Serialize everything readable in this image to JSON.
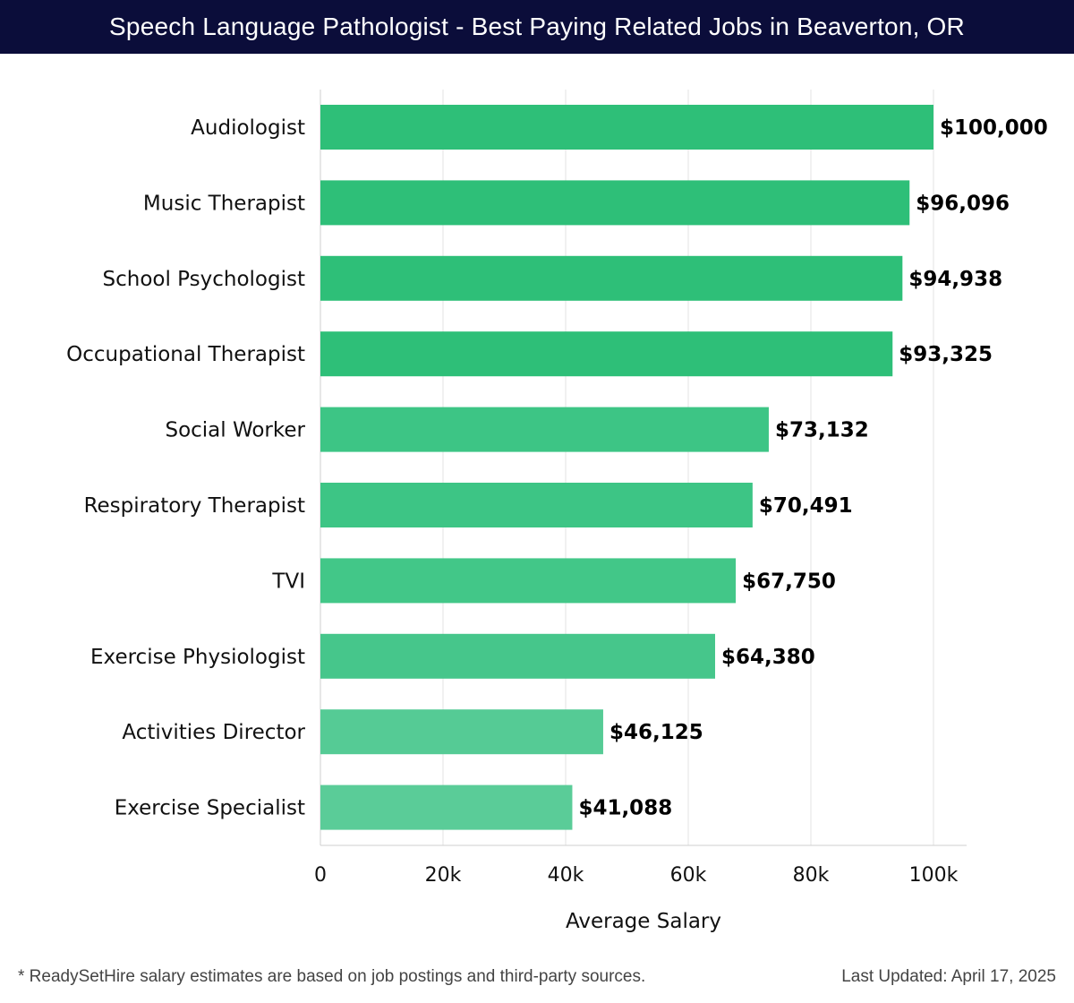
{
  "header": {
    "title": "Speech Language Pathologist - Best Paying Related Jobs in Beaverton, OR"
  },
  "chart_data": {
    "type": "bar",
    "orientation": "horizontal",
    "title": "Speech Language Pathologist - Best Paying Related Jobs in Beaverton, OR",
    "xlabel": "Average Salary",
    "ylabel": "",
    "xlim": [
      0,
      105000
    ],
    "x_ticks": [
      0,
      20000,
      40000,
      60000,
      80000,
      100000
    ],
    "x_tick_labels": [
      "0",
      "20k",
      "40k",
      "60k",
      "80k",
      "100k"
    ],
    "grid": "vertical",
    "categories": [
      "Audiologist",
      "Music Therapist",
      "School Psychologist",
      "Occupational Therapist",
      "Social Worker",
      "Respiratory Therapist",
      "TVI",
      "Exercise Physiologist",
      "Activities Director",
      "Exercise Specialist"
    ],
    "values": [
      100000,
      96096,
      94938,
      93325,
      73132,
      70491,
      67750,
      64380,
      46125,
      41088
    ],
    "value_labels": [
      "$100,000",
      "$96,096",
      "$94,938",
      "$93,325",
      "$73,132",
      "$70,491",
      "$67,750",
      "$64,380",
      "$46,125",
      "$41,088"
    ],
    "bar_colors": [
      "#2ebf78",
      "#2ebf78",
      "#2ebf78",
      "#2ebf78",
      "#3dc585",
      "#3dc585",
      "#42c788",
      "#46c68b",
      "#55cb95",
      "#5acc98"
    ]
  },
  "footer": {
    "note": "* ReadySetHire salary estimates are based on job postings and third-party sources.",
    "updated": "Last Updated: April 17, 2025"
  }
}
